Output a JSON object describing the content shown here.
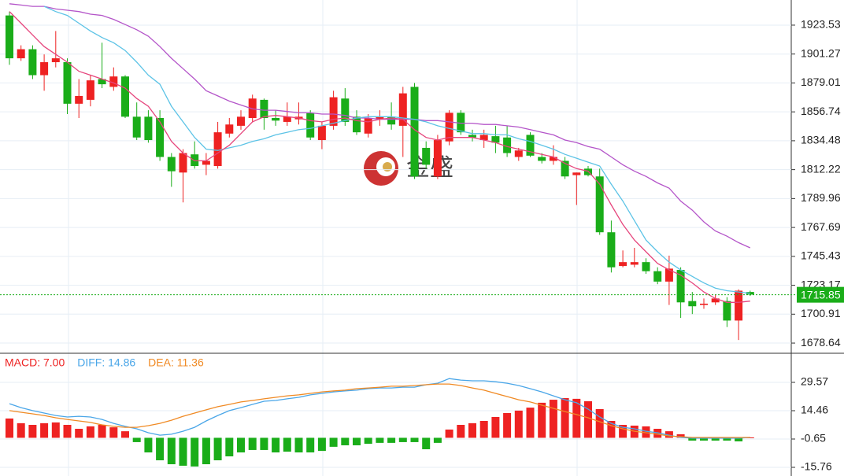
{
  "chart_data": [
    {
      "type": "candlestick",
      "watermark": "金盛",
      "up_color": "#ee2222",
      "down_color": "#1aad19",
      "grid": true,
      "ylim": [
        1671.4,
        1942.9
      ],
      "yticks": [
        1923.53,
        1901.27,
        1879.01,
        1856.74,
        1834.48,
        1812.22,
        1789.96,
        1767.69,
        1745.43,
        1723.17,
        1700.91,
        1678.64
      ],
      "last_price": 1715.85,
      "last_price_color": "#1aad19",
      "open": [
        1931,
        1898,
        1905,
        1885,
        1895,
        1895,
        1863,
        1866,
        1882,
        1876,
        1884,
        1853,
        1853,
        1852,
        1822,
        1810,
        1824,
        1816,
        1815,
        1840,
        1846,
        1852,
        1866,
        1852,
        1849,
        1851,
        1856,
        1835,
        1846,
        1867,
        1853,
        1840,
        1851,
        1853,
        1846,
        1876,
        1829,
        1807,
        1834,
        1856,
        1839,
        1835,
        1838,
        1837,
        1822,
        1839,
        1822,
        1819,
        1819,
        1808,
        1813,
        1807,
        1764,
        1738,
        1739,
        1741,
        1734,
        1726,
        1735,
        1711,
        1708,
        1710,
        1711,
        1696,
        1718
      ],
      "high": [
        1934,
        1908,
        1908,
        1901,
        1919,
        1898,
        1882,
        1885,
        1910,
        1891,
        1885,
        1864,
        1858,
        1858,
        1825,
        1828,
        1834,
        1825,
        1849,
        1852,
        1858,
        1870,
        1867,
        1858,
        1864,
        1864,
        1858,
        1849,
        1873,
        1875,
        1858,
        1855,
        1858,
        1864,
        1876,
        1879,
        1834,
        1839,
        1858,
        1858,
        1843,
        1843,
        1846,
        1846,
        1829,
        1841,
        1825,
        1831,
        1822,
        1810,
        1815,
        1813,
        1773,
        1750,
        1752,
        1744,
        1737,
        1746,
        1737,
        1718,
        1713,
        1716,
        1714,
        1720,
        1719
      ],
      "low": [
        1893,
        1896,
        1882,
        1873,
        1891,
        1855,
        1852,
        1861,
        1875,
        1873,
        1852,
        1835,
        1833,
        1819,
        1799,
        1787,
        1813,
        1808,
        1813,
        1837,
        1843,
        1849,
        1843,
        1846,
        1846,
        1847,
        1835,
        1828,
        1843,
        1846,
        1839,
        1837,
        1846,
        1843,
        1822,
        1805,
        1813,
        1805,
        1831,
        1839,
        1834,
        1829,
        1825,
        1822,
        1819,
        1822,
        1817,
        1816,
        1805,
        1785,
        1807,
        1762,
        1733,
        1737,
        1737,
        1732,
        1724,
        1708,
        1698,
        1701,
        1705,
        1708,
        1691,
        1681,
        1715
      ],
      "close": [
        1898,
        1905,
        1885,
        1895,
        1898,
        1863,
        1869,
        1881,
        1878,
        1884,
        1853,
        1837,
        1835,
        1822,
        1811,
        1825,
        1815,
        1819,
        1841,
        1847,
        1853,
        1867,
        1852,
        1850,
        1853,
        1853,
        1837,
        1846,
        1868,
        1849,
        1841,
        1852,
        1853,
        1847,
        1871,
        1807,
        1816,
        1835,
        1856,
        1841,
        1837,
        1839,
        1833,
        1825,
        1827,
        1823,
        1819,
        1822,
        1807,
        1810,
        1808,
        1764,
        1737,
        1741,
        1741,
        1734,
        1726,
        1736,
        1710,
        1707,
        1709,
        1713,
        1696,
        1719,
        1716
      ],
      "series": [
        {
          "color": "#b455c9",
          "values": [
            1940,
            1939,
            1938,
            1938,
            1936,
            1935,
            1934,
            1932,
            1931,
            1928,
            1924,
            1920,
            1915,
            1907,
            1898,
            1890,
            1882,
            1873,
            1869,
            1865,
            1862,
            1859,
            1858,
            1858,
            1857,
            1856,
            1856,
            1855,
            1855,
            1854,
            1852,
            1852,
            1851,
            1851,
            1851,
            1851,
            1850,
            1850,
            1849,
            1848,
            1848,
            1847,
            1847,
            1846,
            1845,
            1843,
            1841,
            1839,
            1835,
            1833,
            1830,
            1828,
            1822,
            1816,
            1811,
            1807,
            1802,
            1798,
            1788,
            1781,
            1772,
            1765,
            1761,
            1756,
            1752
          ]
        },
        {
          "color": "#5cc3e6",
          "values": [
            null,
            null,
            null,
            1938,
            1934,
            1931,
            1925,
            1919,
            1914,
            1910,
            1904,
            1895,
            1885,
            1878,
            1861,
            1849,
            1837,
            1828,
            1827,
            1829,
            1831,
            1834,
            1836,
            1839,
            1841,
            1843,
            1844,
            1846,
            1848,
            1850,
            1852,
            1853,
            1853,
            1853,
            1852,
            1851,
            1849,
            1846,
            1844,
            1842,
            1840,
            1840,
            1839,
            1839,
            1836,
            1834,
            1831,
            1828,
            1824,
            1821,
            1818,
            1815,
            1801,
            1788,
            1773,
            1758,
            1749,
            1741,
            1735,
            1730,
            1725,
            1721,
            1719,
            1718,
            1717
          ]
        },
        {
          "color": "#e6457c",
          "values": [
            1934,
            1925,
            1916,
            1907,
            1901,
            1895,
            1888,
            1885,
            1882,
            1879,
            1875,
            1867,
            1861,
            1849,
            1834,
            1825,
            1819,
            1819,
            1825,
            1831,
            1840,
            1849,
            1853,
            1854,
            1853,
            1852,
            1850,
            1849,
            1851,
            1852,
            1850,
            1849,
            1851,
            1852,
            1851,
            1843,
            1837,
            1835,
            1837,
            1837,
            1837,
            1835,
            1833,
            1830,
            1828,
            1826,
            1824,
            1822,
            1817,
            1813,
            1811,
            1801,
            1785,
            1770,
            1758,
            1749,
            1740,
            1735,
            1731,
            1725,
            1718,
            1713,
            1710,
            1710,
            1711
          ]
        }
      ]
    },
    {
      "type": "macd",
      "grid": true,
      "ylim": [
        -18.28,
        44.68
      ],
      "yticks": [
        29.57,
        14.46,
        -0.65,
        -15.76
      ],
      "bars": {
        "name": "MACD: 7.00",
        "color": "#ee2222",
        "up_color": "#ee2222",
        "down_color": "#1aad19",
        "values": [
          10.3,
          7.8,
          6.9,
          7.8,
          8.2,
          6.9,
          4.8,
          6.1,
          6.9,
          5.6,
          3.5,
          -2.3,
          -7.8,
          -12.0,
          -14.1,
          -14.9,
          -15.3,
          -14.1,
          -12.0,
          -9.9,
          -7.8,
          -6.5,
          -6.5,
          -7.8,
          -7.4,
          -7.8,
          -7.8,
          -7.0,
          -4.8,
          -4.0,
          -4.0,
          -3.2,
          -2.7,
          -2.7,
          -2.3,
          -2.3,
          -6.1,
          -2.7,
          4.4,
          6.9,
          7.8,
          9.0,
          11.1,
          13.2,
          14.5,
          16.1,
          18.7,
          20.3,
          21.2,
          20.8,
          19.5,
          15.3,
          9.0,
          6.9,
          6.5,
          6.1,
          4.8,
          3.5,
          1.9,
          -1.5,
          -1.5,
          -1.5,
          -1.5,
          -1.9,
          0.2
        ]
      },
      "series": [
        {
          "name": "DIFF: 14.86",
          "color": "#4aa6e8",
          "values": [
            18.2,
            16.1,
            14.5,
            13.2,
            11.9,
            11.1,
            11.5,
            11.1,
            9.8,
            7.7,
            6.1,
            4.8,
            2.7,
            1.4,
            1.9,
            3.5,
            5.6,
            9.0,
            11.9,
            14.5,
            16.1,
            17.8,
            19.5,
            19.9,
            20.8,
            21.6,
            22.9,
            23.7,
            24.5,
            25.0,
            25.4,
            26.2,
            26.6,
            26.6,
            27.0,
            27.0,
            28.3,
            29.1,
            31.6,
            30.8,
            30.4,
            30.4,
            29.9,
            29.1,
            27.9,
            26.2,
            24.5,
            22.4,
            20.3,
            18.7,
            15.3,
            11.1,
            7.7,
            5.6,
            4.8,
            3.5,
            2.7,
            1.4,
            0.2,
            -0.2,
            -0.2,
            -0.2,
            -0.2,
            -0.2,
            0.2
          ]
        },
        {
          "name": "DEA: 11.36",
          "color": "#f08a24",
          "values": [
            14.5,
            13.6,
            12.8,
            11.9,
            10.7,
            9.8,
            9.0,
            8.2,
            6.9,
            6.1,
            5.6,
            5.6,
            6.5,
            7.7,
            9.4,
            11.5,
            13.2,
            14.9,
            16.6,
            17.8,
            19.1,
            19.9,
            20.8,
            21.6,
            22.4,
            22.9,
            23.7,
            24.5,
            25.0,
            25.4,
            26.2,
            26.6,
            27.0,
            27.5,
            27.5,
            27.9,
            28.3,
            28.7,
            28.7,
            27.9,
            26.6,
            25.4,
            23.7,
            22.0,
            20.3,
            19.1,
            17.4,
            15.7,
            14.0,
            12.4,
            10.7,
            8.6,
            6.5,
            4.8,
            3.5,
            2.7,
            1.9,
            1.0,
            0.6,
            0.2,
            0.2,
            0.2,
            0.2,
            0.2,
            0.2
          ]
        }
      ]
    }
  ]
}
